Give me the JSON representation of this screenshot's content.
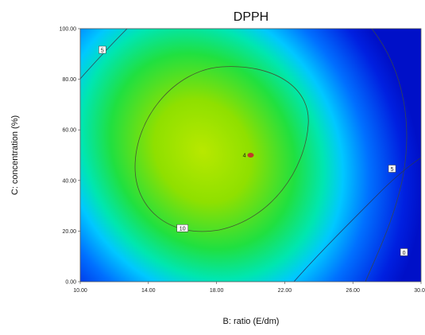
{
  "chart_data": {
    "type": "heatmap",
    "title": "DPPH",
    "xlabel": "B: ratio (E/dm)",
    "ylabel": "C: concentration (%)",
    "xlim": [
      10,
      30
    ],
    "ylim": [
      0,
      100
    ],
    "x_ticks": [
      "10.00",
      "14.00",
      "18.00",
      "22.00",
      "26.00",
      "30.00"
    ],
    "y_ticks": [
      "0.00",
      "20.00",
      "40.00",
      "60.00",
      "80.00",
      "100.00"
    ],
    "contour_labels": [
      {
        "text": "5",
        "x": 11.3,
        "y": 91.5
      },
      {
        "text": "10",
        "x": 16.0,
        "y": 21.0
      },
      {
        "text": "5",
        "x": 28.3,
        "y": 44.5
      },
      {
        "text": "0",
        "x": 29.0,
        "y": 11.5
      }
    ],
    "design_point": {
      "label": "4",
      "x": 20.0,
      "y": 50.0,
      "color": "#c0392b"
    },
    "grid": false,
    "legend": "none"
  }
}
